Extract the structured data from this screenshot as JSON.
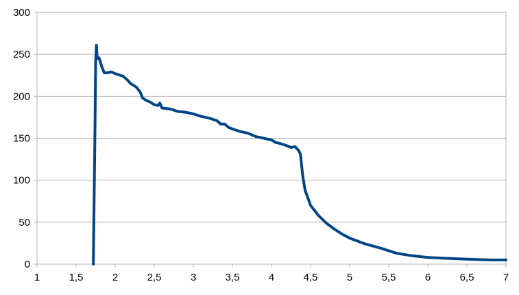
{
  "chart_data": {
    "type": "line",
    "title": "",
    "xlabel": "",
    "ylabel": "",
    "xlim": [
      1,
      7
    ],
    "ylim": [
      0,
      300
    ],
    "x_ticks": [
      "1",
      "1,5",
      "2",
      "2,5",
      "3",
      "3,5",
      "4",
      "4,5",
      "5",
      "5,5",
      "6",
      "6,5",
      "7"
    ],
    "x_tick_values": [
      1,
      1.5,
      2,
      2.5,
      3,
      3.5,
      4,
      4.5,
      5,
      5.5,
      6,
      6.5,
      7
    ],
    "y_ticks": [
      "0",
      "50",
      "100",
      "150",
      "200",
      "250",
      "300"
    ],
    "y_tick_values": [
      0,
      50,
      100,
      150,
      200,
      250,
      300
    ],
    "grid": "horizontal",
    "legend": "none",
    "series": [
      {
        "color": "#004586",
        "x": [
          1.72,
          1.74,
          1.75,
          1.76,
          1.77,
          1.79,
          1.8,
          1.83,
          1.86,
          1.9,
          1.95,
          2.0,
          2.1,
          2.15,
          2.2,
          2.27,
          2.32,
          2.35,
          2.4,
          2.45,
          2.5,
          2.55,
          2.57,
          2.6,
          2.7,
          2.8,
          2.9,
          3.0,
          3.1,
          3.2,
          3.3,
          3.35,
          3.4,
          3.45,
          3.5,
          3.6,
          3.7,
          3.8,
          3.9,
          4.0,
          4.05,
          4.1,
          4.2,
          4.25,
          4.3,
          4.35,
          4.37,
          4.4,
          4.43,
          4.5,
          4.6,
          4.7,
          4.8,
          4.9,
          5.0,
          5.2,
          5.4,
          5.6,
          5.8,
          6.0,
          6.2,
          6.5,
          6.8,
          7.0
        ],
        "y": [
          0,
          150,
          240,
          261,
          245,
          246,
          244,
          235,
          228,
          228,
          229,
          227,
          224,
          220,
          215,
          211,
          205,
          198,
          195,
          193,
          190,
          189,
          192,
          186,
          185,
          182,
          181,
          179,
          176,
          174,
          171,
          167,
          167,
          163,
          161,
          158,
          156,
          152,
          150,
          148,
          145,
          144,
          141,
          139,
          140,
          135,
          131,
          105,
          88,
          70,
          58,
          49,
          42,
          36,
          31,
          24,
          19,
          13,
          10,
          8,
          7,
          6,
          5,
          5
        ]
      }
    ]
  }
}
